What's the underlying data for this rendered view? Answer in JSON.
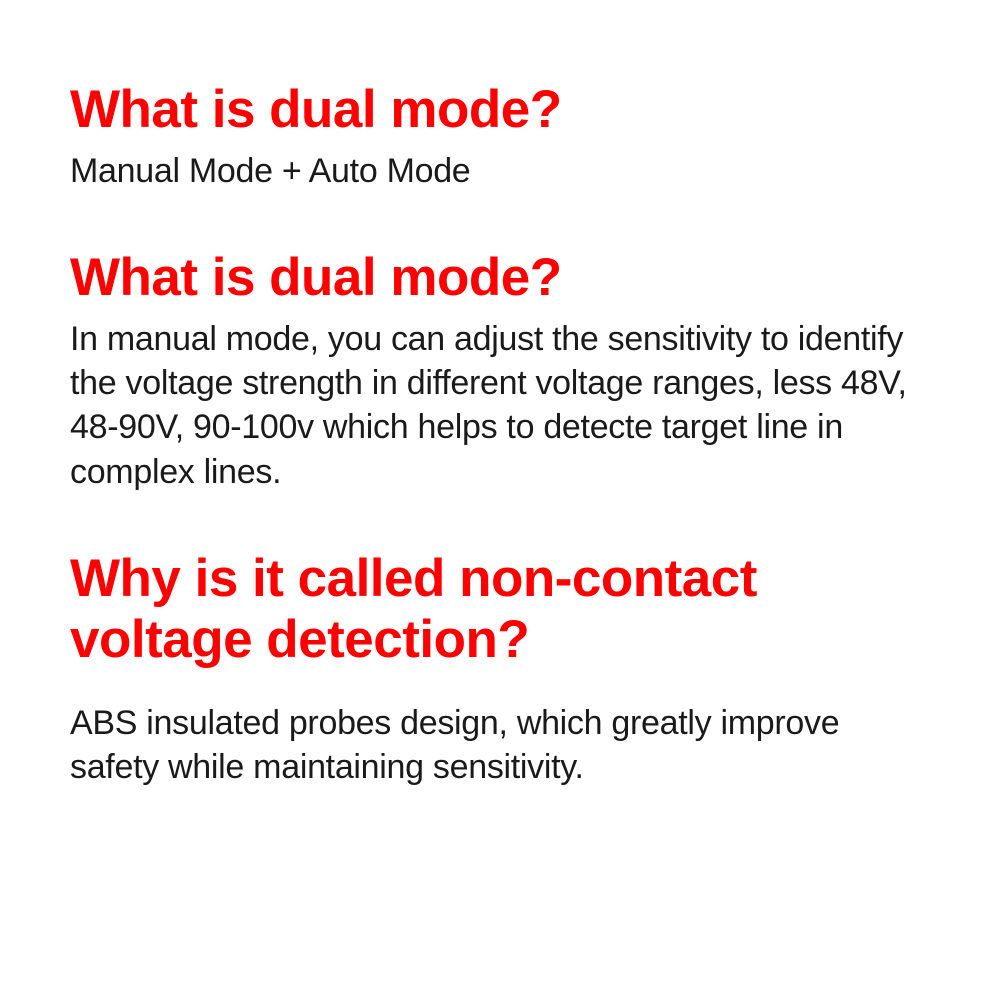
{
  "sections": [
    {
      "heading": "What is dual mode?",
      "heading_color": "#ff0000",
      "body": "Manual Mode + Auto Mode"
    },
    {
      "heading": "What is dual mode?",
      "heading_color": "#ff0000",
      "body": "In manual mode, you can adjust the sensitivity to identify the voltage strength in different voltage ranges, less 48V, 48-90V, 90-100v which helps to detecte target line in complex lines."
    },
    {
      "heading": "Why is it called non-contact voltage detection?",
      "heading_color": "#ff0000",
      "body": "ABS insulated probes design, which greatly improve safety while maintaining sensitivity."
    }
  ],
  "styles": {
    "background_color": "#ffffff",
    "heading_fontsize": 53,
    "heading_fontweight": "bold",
    "body_fontsize": 34,
    "body_color": "#1a1a1a",
    "heading_red": "#ff0000"
  }
}
